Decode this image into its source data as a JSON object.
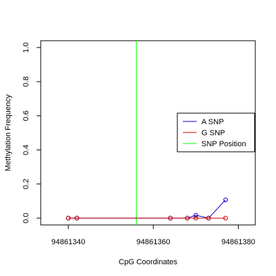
{
  "chart_data": {
    "type": "line",
    "title": "",
    "xlabel": "CpG Coordinates",
    "ylabel": "Methylation Frequency",
    "xlim": [
      94861333.5,
      94861384
    ],
    "ylim": [
      -0.04,
      1.04
    ],
    "x_ticks": [
      94861340,
      94861360,
      94861380
    ],
    "x_tick_labels": [
      "94861340",
      "94861360",
      "94861380"
    ],
    "y_ticks": [
      0.0,
      0.2,
      0.4,
      0.6,
      0.8,
      1.0
    ],
    "y_tick_labels": [
      "0.0",
      "0.2",
      "0.4",
      "0.6",
      "0.8",
      "1.0"
    ],
    "legend_position": "right",
    "legend": [
      {
        "label": "A SNP",
        "color": "#0000cc"
      },
      {
        "label": "G SNP",
        "color": "#cc0000"
      },
      {
        "label": "SNP Position",
        "color": "#00ff00"
      }
    ],
    "snp_position": 94861356,
    "series": [
      {
        "name": "A SNP",
        "color": "#0000cc",
        "x": [
          94861340,
          94861342,
          94861364,
          94861368,
          94861370,
          94861373,
          94861377
        ],
        "y": [
          0.0,
          0.0,
          0.0,
          0.0,
          0.017,
          0.0,
          0.107
        ]
      },
      {
        "name": "G SNP",
        "color": "#cc0000",
        "x": [
          94861340,
          94861342,
          94861364,
          94861368,
          94861370,
          94861373,
          94861377
        ],
        "y": [
          0.0,
          0.0,
          0.0,
          0.0,
          0.0,
          0.0,
          0.0
        ]
      }
    ]
  }
}
